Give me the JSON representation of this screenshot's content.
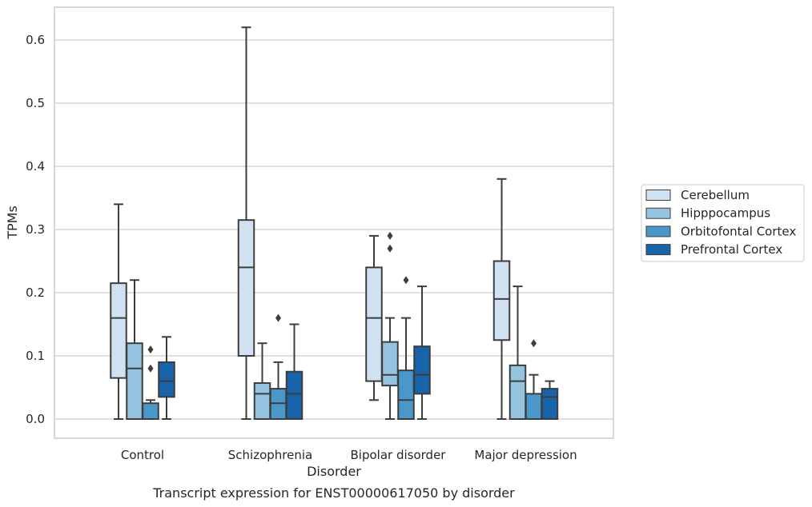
{
  "chart_data": {
    "type": "box",
    "title": "",
    "caption": "Transcript expression for ENST00000617050 by disorder",
    "xlabel": "Disorder",
    "ylabel": "TPMs",
    "ylim": [
      -0.03,
      0.65
    ],
    "yticks": [
      "0.0",
      "0.1",
      "0.2",
      "0.3",
      "0.4",
      "0.5",
      "0.6"
    ],
    "grid": "horizontal",
    "legend_position": "right",
    "categories": [
      "Control",
      "Schizophrenia",
      "Bipolar disorder",
      "Major depression"
    ],
    "series": [
      {
        "name": "Cerebellum",
        "color": "#d0e1f2",
        "boxes": [
          {
            "lower_whisker": 0.0,
            "q1": 0.065,
            "median": 0.16,
            "q3": 0.215,
            "upper_whisker": 0.34,
            "outliers": []
          },
          {
            "lower_whisker": 0.0,
            "q1": 0.1,
            "median": 0.24,
            "q3": 0.315,
            "upper_whisker": 0.62,
            "outliers": []
          },
          {
            "lower_whisker": 0.03,
            "q1": 0.06,
            "median": 0.16,
            "q3": 0.24,
            "upper_whisker": 0.29,
            "outliers": []
          },
          {
            "lower_whisker": 0.0,
            "q1": 0.125,
            "median": 0.19,
            "q3": 0.25,
            "upper_whisker": 0.38,
            "outliers": []
          }
        ]
      },
      {
        "name": "Hipppocampus",
        "color": "#94c4df",
        "boxes": [
          {
            "lower_whisker": 0.0,
            "q1": 0.0,
            "median": 0.08,
            "q3": 0.12,
            "upper_whisker": 0.22,
            "outliers": []
          },
          {
            "lower_whisker": 0.0,
            "q1": 0.0,
            "median": 0.04,
            "q3": 0.057,
            "upper_whisker": 0.12,
            "outliers": []
          },
          {
            "lower_whisker": 0.0,
            "q1": 0.053,
            "median": 0.07,
            "q3": 0.122,
            "upper_whisker": 0.16,
            "outliers": [
              0.27,
              0.29
            ]
          },
          {
            "lower_whisker": 0.0,
            "q1": 0.0,
            "median": 0.06,
            "q3": 0.085,
            "upper_whisker": 0.21,
            "outliers": []
          }
        ]
      },
      {
        "name": "Orbitofontal Cortex",
        "color": "#4a98c9",
        "boxes": [
          {
            "lower_whisker": 0.0,
            "q1": 0.0,
            "median": 0.0,
            "q3": 0.025,
            "upper_whisker": 0.03,
            "outliers": [
              0.08,
              0.11
            ]
          },
          {
            "lower_whisker": 0.0,
            "q1": 0.0,
            "median": 0.025,
            "q3": 0.048,
            "upper_whisker": 0.09,
            "outliers": [
              0.16
            ]
          },
          {
            "lower_whisker": 0.0,
            "q1": 0.0,
            "median": 0.03,
            "q3": 0.077,
            "upper_whisker": 0.16,
            "outliers": [
              0.22
            ]
          },
          {
            "lower_whisker": 0.0,
            "q1": 0.0,
            "median": 0.0,
            "q3": 0.04,
            "upper_whisker": 0.07,
            "outliers": [
              0.12
            ]
          }
        ]
      },
      {
        "name": "Prefrontal Cortex",
        "color": "#1764ab",
        "boxes": [
          {
            "lower_whisker": 0.0,
            "q1": 0.035,
            "median": 0.06,
            "q3": 0.09,
            "upper_whisker": 0.13,
            "outliers": []
          },
          {
            "lower_whisker": 0.0,
            "q1": 0.0,
            "median": 0.04,
            "q3": 0.075,
            "upper_whisker": 0.15,
            "outliers": []
          },
          {
            "lower_whisker": 0.0,
            "q1": 0.04,
            "median": 0.07,
            "q3": 0.115,
            "upper_whisker": 0.21,
            "outliers": []
          },
          {
            "lower_whisker": 0.0,
            "q1": 0.0,
            "median": 0.035,
            "q3": 0.048,
            "upper_whisker": 0.06,
            "outliers": []
          }
        ]
      }
    ]
  }
}
